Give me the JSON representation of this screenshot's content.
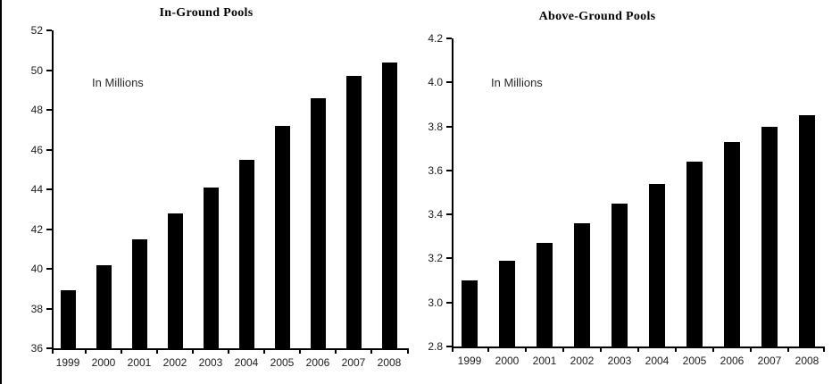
{
  "page": {
    "background_color": "#ffffff",
    "left_edge_line_color": "#000000"
  },
  "chart_data": [
    {
      "type": "bar",
      "title": "In-Ground Pools",
      "annotation": "In Millions",
      "categories": [
        "1999",
        "2000",
        "2001",
        "2002",
        "2003",
        "2004",
        "2005",
        "2006",
        "2007",
        "2008"
      ],
      "values": [
        38.9,
        40.2,
        41.5,
        42.8,
        44.1,
        45.5,
        47.2,
        48.6,
        49.7,
        50.4
      ],
      "xlabel": "",
      "ylabel": "",
      "ylim": [
        36,
        52
      ],
      "yticks": [
        36,
        38,
        40,
        42,
        44,
        46,
        48,
        50,
        52
      ],
      "ytick_decimals": 0,
      "bar_color": "#000000",
      "axis_color": "#000000",
      "grid": false,
      "legend": "none"
    },
    {
      "type": "bar",
      "title": "Above-Ground Pools",
      "annotation": "In Millions",
      "categories": [
        "1999",
        "2000",
        "2001",
        "2002",
        "2003",
        "2004",
        "2005",
        "2006",
        "2007",
        "2008"
      ],
      "values": [
        3.1,
        3.19,
        3.27,
        3.36,
        3.45,
        3.54,
        3.64,
        3.73,
        3.8,
        3.85
      ],
      "xlabel": "",
      "ylabel": "",
      "ylim": [
        2.8,
        4.2
      ],
      "yticks": [
        2.8,
        3.0,
        3.2,
        3.4,
        3.6,
        3.8,
        4.0,
        4.2
      ],
      "ytick_decimals": 1,
      "bar_color": "#000000",
      "axis_color": "#000000",
      "grid": false,
      "legend": "none"
    }
  ]
}
